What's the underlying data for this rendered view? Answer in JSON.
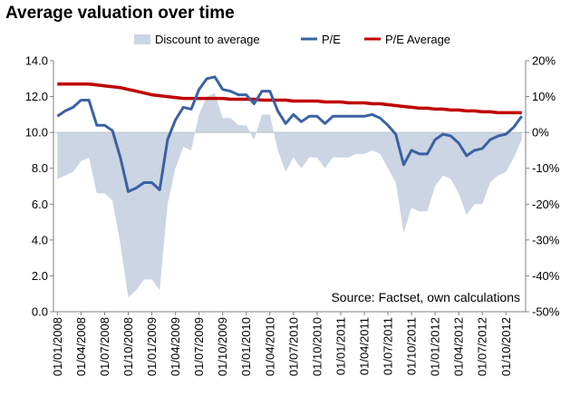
{
  "chart_data": {
    "type": "line",
    "title": "Average valuation over time",
    "legend": {
      "position": "top",
      "entries": [
        {
          "name": "Discount to average",
          "kind": "area",
          "color": "#ccd5e3"
        },
        {
          "name": "P/E",
          "kind": "line",
          "color": "#3a62a4"
        },
        {
          "name": "P/E Average",
          "kind": "line",
          "color": "#c00000"
        }
      ]
    },
    "annotation": "Source: Factset, own calculations",
    "y_left": {
      "min": 0,
      "max": 14,
      "ticks": [
        "0.0",
        "2.0",
        "4.0",
        "6.0",
        "8.0",
        "10.0",
        "12.0",
        "14.0"
      ]
    },
    "y_right": {
      "min": -50,
      "max": 20,
      "ticks": [
        "-50%",
        "-40%",
        "-30%",
        "-20%",
        "-10%",
        "0%",
        "10%",
        "20%"
      ]
    },
    "x_tick_labels": [
      "01/01/2008",
      "01/04/2008",
      "01/07/2008",
      "01/10/2008",
      "01/01/2009",
      "01/04/2009",
      "01/07/2009",
      "01/10/2009",
      "01/01/2010",
      "01/04/2010",
      "01/07/2010",
      "01/10/2010",
      "01/01/2011",
      "01/04/2011",
      "01/07/2011",
      "01/10/2011",
      "01/01/2012",
      "01/04/2012",
      "01/07/2012",
      "01/10/2012"
    ],
    "x_months": [
      "2008-01",
      "2008-02",
      "2008-03",
      "2008-04",
      "2008-05",
      "2008-06",
      "2008-07",
      "2008-08",
      "2008-09",
      "2008-10",
      "2008-11",
      "2008-12",
      "2009-01",
      "2009-02",
      "2009-03",
      "2009-04",
      "2009-05",
      "2009-06",
      "2009-07",
      "2009-08",
      "2009-09",
      "2009-10",
      "2009-11",
      "2009-12",
      "2010-01",
      "2010-02",
      "2010-03",
      "2010-04",
      "2010-05",
      "2010-06",
      "2010-07",
      "2010-08",
      "2010-09",
      "2010-10",
      "2010-11",
      "2010-12",
      "2011-01",
      "2011-02",
      "2011-03",
      "2011-04",
      "2011-05",
      "2011-06",
      "2011-07",
      "2011-08",
      "2011-09",
      "2011-10",
      "2011-11",
      "2011-12",
      "2012-01",
      "2012-02",
      "2012-03",
      "2012-04",
      "2012-05",
      "2012-06",
      "2012-07",
      "2012-08",
      "2012-09",
      "2012-10",
      "2012-11",
      "2012-12"
    ],
    "series": [
      {
        "name": "P/E",
        "axis": "left",
        "color": "#3a62a4",
        "values": [
          10.9,
          11.2,
          11.4,
          11.8,
          11.8,
          10.4,
          10.4,
          10.1,
          8.6,
          6.7,
          6.9,
          7.2,
          7.2,
          6.8,
          9.6,
          10.7,
          11.4,
          11.3,
          12.4,
          13.0,
          13.1,
          12.4,
          12.3,
          12.1,
          12.1,
          11.6,
          12.3,
          12.3,
          11.2,
          10.5,
          11.0,
          10.6,
          10.9,
          10.9,
          10.5,
          10.9,
          10.9,
          10.9,
          10.9,
          10.9,
          11.0,
          10.8,
          10.4,
          9.9,
          8.2,
          9.0,
          8.8,
          8.8,
          9.6,
          9.9,
          9.8,
          9.4,
          8.7,
          9.0,
          9.1,
          9.6,
          9.8,
          9.9,
          10.3,
          10.9
        ]
      },
      {
        "name": "P/E Average",
        "axis": "left",
        "color": "#c00000",
        "values": [
          12.7,
          12.7,
          12.7,
          12.7,
          12.7,
          12.65,
          12.6,
          12.55,
          12.5,
          12.4,
          12.3,
          12.2,
          12.1,
          12.05,
          12.0,
          11.95,
          11.9,
          11.9,
          11.9,
          11.9,
          11.9,
          11.9,
          11.85,
          11.85,
          11.85,
          11.85,
          11.8,
          11.8,
          11.8,
          11.8,
          11.75,
          11.75,
          11.75,
          11.75,
          11.7,
          11.7,
          11.7,
          11.65,
          11.65,
          11.65,
          11.6,
          11.6,
          11.55,
          11.5,
          11.45,
          11.4,
          11.35,
          11.35,
          11.3,
          11.3,
          11.25,
          11.25,
          11.2,
          11.2,
          11.15,
          11.15,
          11.1,
          11.1,
          11.1,
          11.1
        ]
      },
      {
        "name": "Discount to average",
        "axis": "right",
        "color": "#ccd5e3",
        "values": [
          -13,
          -12,
          -11,
          -8,
          -7,
          -17,
          -17,
          -19,
          -31,
          -46,
          -44,
          -41,
          -41,
          -44,
          -20,
          -10,
          -4,
          -5,
          5,
          10,
          11,
          4,
          4,
          2,
          2,
          -2,
          5,
          5,
          -5,
          -11,
          -7,
          -10,
          -7,
          -7,
          -10,
          -7,
          -7,
          -7,
          -6,
          -6,
          -5,
          -6,
          -10,
          -14,
          -28,
          -21,
          -22,
          -22,
          -15,
          -12,
          -13,
          -17,
          -23,
          -20,
          -20,
          -14,
          -12,
          -11,
          -7,
          -2
        ]
      }
    ]
  }
}
